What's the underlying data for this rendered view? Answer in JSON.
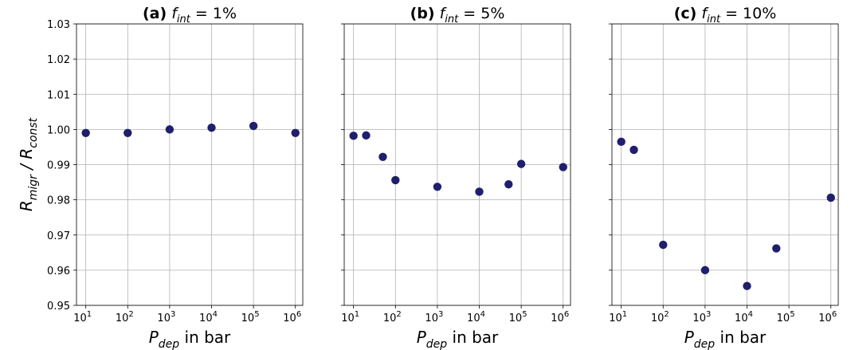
{
  "chart_data": [
    {
      "type": "scatter",
      "title": {
        "label": "(a)",
        "symbol": "f",
        "subscript": "int",
        "value": " = 1%"
      },
      "xscale": "log",
      "xlim": [
        6,
        1500000
      ],
      "ylim": [
        0.95,
        1.03
      ],
      "xticks": [
        {
          "base": "10",
          "exp": "1"
        },
        {
          "base": "10",
          "exp": "2"
        },
        {
          "base": "10",
          "exp": "3"
        },
        {
          "base": "10",
          "exp": "4"
        },
        {
          "base": "10",
          "exp": "5"
        },
        {
          "base": "10",
          "exp": "6"
        }
      ],
      "yticks": [
        "0.95",
        "0.96",
        "0.97",
        "0.98",
        "0.99",
        "1.00",
        "1.01",
        "1.02",
        "1.03"
      ],
      "xlabel": {
        "symbol": "P",
        "subscript": "dep",
        "suffix": " in bar"
      },
      "ylabel": {
        "num": "R",
        "num_sub": "migr",
        "sep": " / ",
        "den": "R",
        "den_sub": "const"
      },
      "x": [
        10,
        100,
        1000,
        10000,
        100000,
        1000000
      ],
      "y": [
        0.999,
        0.999,
        1.0,
        1.0005,
        1.001,
        0.999
      ]
    },
    {
      "type": "scatter",
      "title": {
        "label": "(b)",
        "symbol": "f",
        "subscript": "int",
        "value": " = 5%"
      },
      "xscale": "log",
      "xlim": [
        6,
        1500000
      ],
      "ylim": [
        0.95,
        1.03
      ],
      "xticks": [
        {
          "base": "10",
          "exp": "1"
        },
        {
          "base": "10",
          "exp": "2"
        },
        {
          "base": "10",
          "exp": "3"
        },
        {
          "base": "10",
          "exp": "4"
        },
        {
          "base": "10",
          "exp": "5"
        },
        {
          "base": "10",
          "exp": "6"
        }
      ],
      "yticks": [],
      "xlabel": {
        "symbol": "P",
        "subscript": "dep",
        "suffix": " in bar"
      },
      "x": [
        10,
        20,
        50,
        100,
        1000,
        10000,
        50000,
        100000,
        1000000
      ],
      "y": [
        0.9982,
        0.9983,
        0.9922,
        0.9856,
        0.9837,
        0.9823,
        0.9844,
        0.9902,
        0.9893
      ]
    },
    {
      "type": "scatter",
      "title": {
        "label": "(c)",
        "symbol": "f",
        "subscript": "int",
        "value": " = 10%"
      },
      "xscale": "log",
      "xlim": [
        6,
        1500000
      ],
      "ylim": [
        0.95,
        1.03
      ],
      "xticks": [
        {
          "base": "10",
          "exp": "1"
        },
        {
          "base": "10",
          "exp": "2"
        },
        {
          "base": "10",
          "exp": "3"
        },
        {
          "base": "10",
          "exp": "4"
        },
        {
          "base": "10",
          "exp": "5"
        },
        {
          "base": "10",
          "exp": "6"
        }
      ],
      "yticks": [],
      "xlabel": {
        "symbol": "P",
        "subscript": "dep",
        "suffix": " in bar"
      },
      "x": [
        10,
        20,
        100,
        1000,
        10000,
        50000,
        1000000
      ],
      "y": [
        0.9965,
        0.9942,
        0.9672,
        0.96,
        0.9555,
        0.9662,
        0.9806
      ]
    }
  ],
  "style": {
    "marker_color": "#1f1f6e",
    "grid": true
  }
}
